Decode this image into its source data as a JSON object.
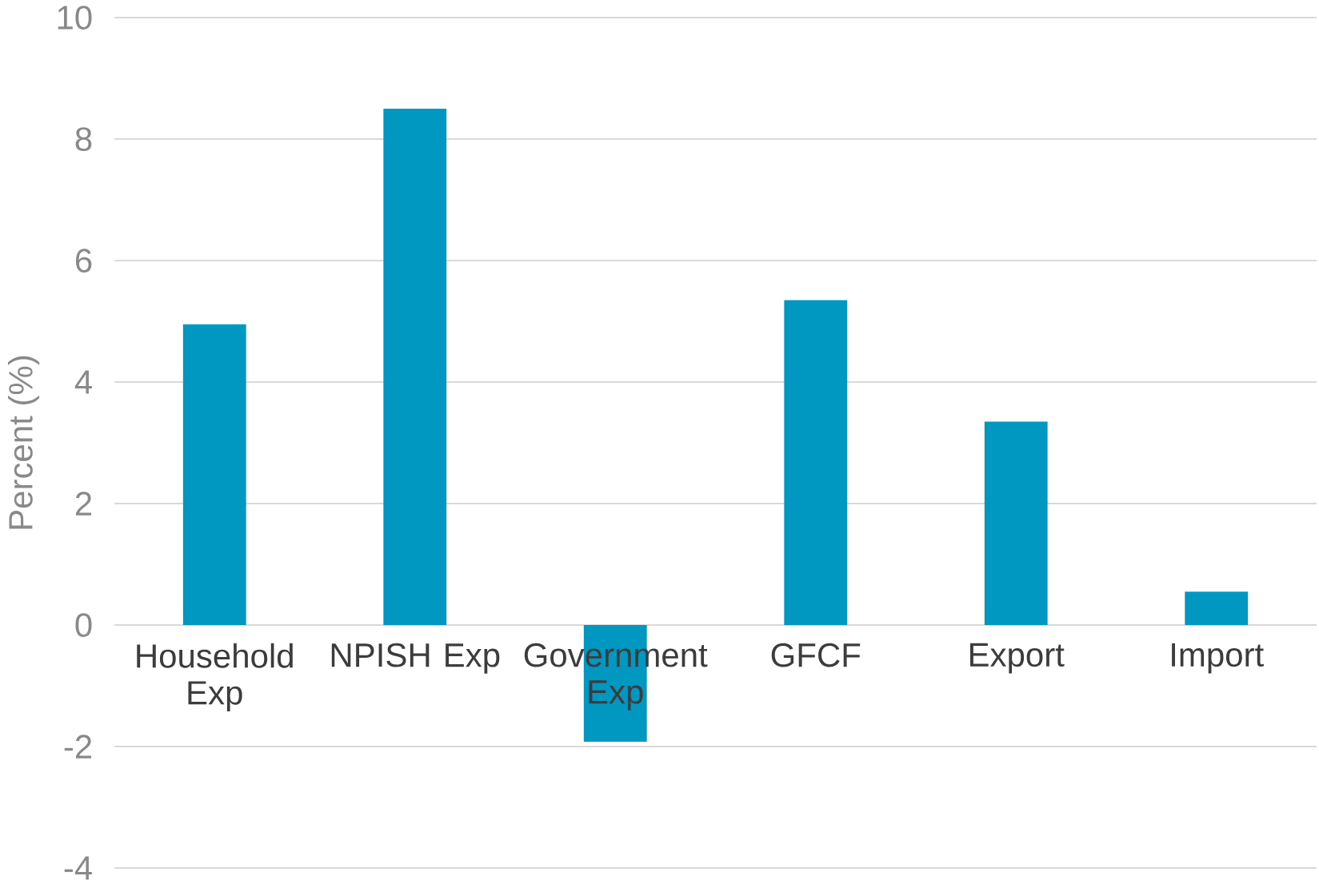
{
  "chart_data": {
    "type": "bar",
    "ylabel": "Percent (%)",
    "categories": [
      "Household Exp",
      "NPISH Exp",
      "Government Exp",
      "GFCF",
      "Export",
      "Import"
    ],
    "values": [
      4.95,
      8.5,
      -1.92,
      5.35,
      3.35,
      0.55
    ],
    "color": "#0098c0",
    "ylim": [
      -4,
      10
    ],
    "yticks": [
      -4,
      -2,
      0,
      2,
      4,
      6,
      8,
      10
    ],
    "grid": "y"
  }
}
